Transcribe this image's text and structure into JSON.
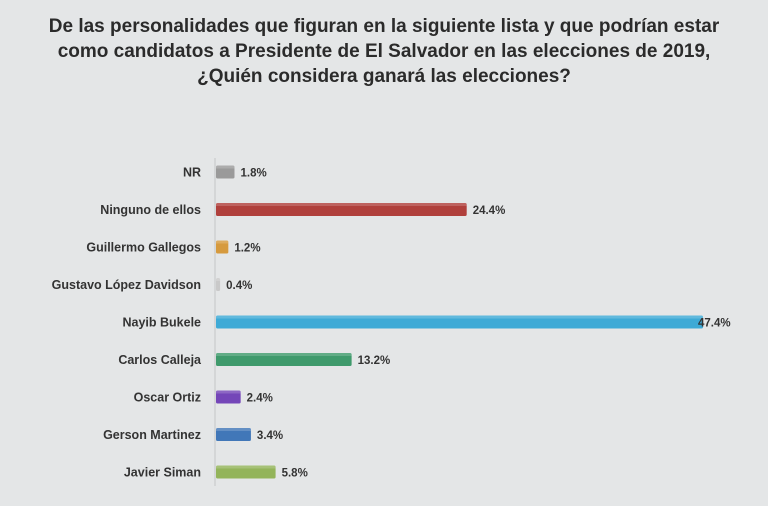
{
  "chart_data": {
    "type": "bar",
    "orientation": "horizontal",
    "title": [
      "De las personalidades que figuran en la siguiente lista y que podrían estar",
      "como candidatos a Presidente de El Salvador en las elecciones de 2019,",
      "¿Quién considera ganará las elecciones?"
    ],
    "categories": [
      "NR",
      "Ninguno de ellos",
      "Guillermo Gallegos",
      "Gustavo López Davidson",
      "Nayib Bukele",
      "Carlos Calleja",
      "Oscar Ortiz",
      "Gerson Martinez",
      "Javier Siman"
    ],
    "values": [
      1.8,
      24.4,
      1.2,
      0.4,
      47.4,
      13.2,
      2.4,
      3.4,
      5.8
    ],
    "value_labels": [
      "1.8%",
      "24.4%",
      "1.2%",
      "0.4%",
      "47.4%",
      "13.2%",
      "2.4%",
      "3.4%",
      "5.8%"
    ],
    "colors": [
      "#9a9a9a",
      "#b0403c",
      "#d69a3e",
      "#c9c9c9",
      "#3eaad6",
      "#3f9a6c",
      "#7446b8",
      "#4177b8",
      "#93b45a"
    ],
    "xlim": [
      0,
      47.4
    ],
    "grid": false,
    "legend": "none"
  }
}
